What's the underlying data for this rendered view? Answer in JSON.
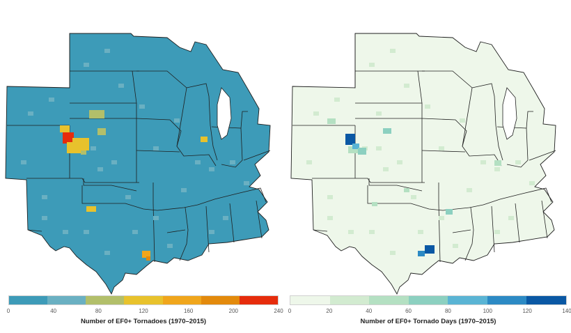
{
  "maps": [
    {
      "id": "tornadoes",
      "base_color": "#3d9bb8",
      "legend": {
        "title": "Number of EF0+ Tornadoes (1970–2015)",
        "ticks": [
          "0",
          "40",
          "80",
          "120",
          "160",
          "200",
          "240"
        ],
        "colors": [
          "#3d9bb8",
          "#6ab0c2",
          "#b2bf6a",
          "#e8c22c",
          "#f0a61c",
          "#e38a0c",
          "#e62c0c"
        ]
      }
    },
    {
      "id": "tornado-days",
      "base_color": "#eef7ea",
      "legend": {
        "title": "Number of EF0+ Tornado Days (1970–2015)",
        "ticks": [
          "0",
          "20",
          "40",
          "60",
          "80",
          "100",
          "120",
          "140"
        ],
        "colors": [
          "#eef7ea",
          "#d2ebd0",
          "#b4e0c2",
          "#8cd0c0",
          "#5ab4d4",
          "#2c8ac4",
          "#0a58a4"
        ]
      }
    }
  ]
}
